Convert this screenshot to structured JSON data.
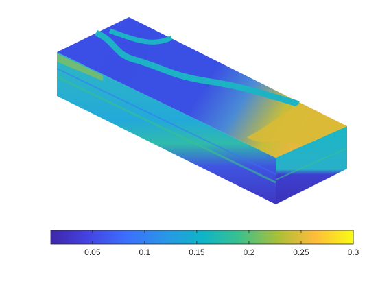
{
  "chart_data": {
    "type": "volume",
    "colorbar": {
      "lim": [
        0.01,
        0.3
      ],
      "ticks": [
        0.05,
        0.1,
        0.15,
        0.2,
        0.25,
        0.3
      ]
    }
  }
}
